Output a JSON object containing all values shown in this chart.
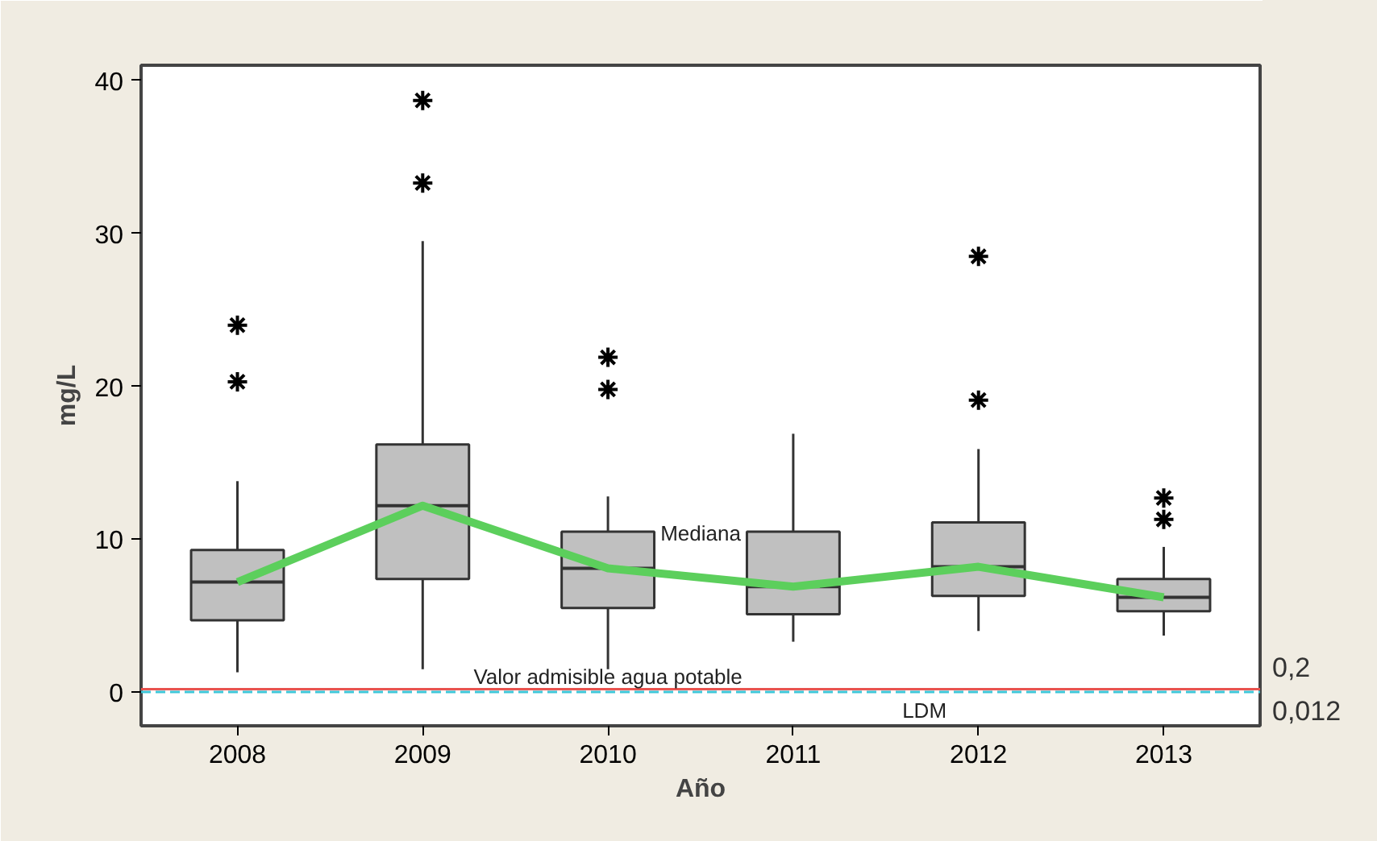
{
  "chart_data": {
    "type": "box",
    "xlabel": "Año",
    "ylabel": "mg/L",
    "categories": [
      "2008",
      "2009",
      "2010",
      "2011",
      "2012",
      "2013"
    ],
    "ylim": [
      -2.2,
      41
    ],
    "yticks": [
      0,
      10,
      20,
      30,
      40
    ],
    "grid": false,
    "legend": false,
    "series": [
      {
        "type": "box",
        "color": "#c0c0c0",
        "boxes": [
          {
            "low": 1.3,
            "q1": 4.7,
            "median": 7.2,
            "q3": 9.3,
            "high": 13.8,
            "outliers": [
              24.0,
              20.3
            ]
          },
          {
            "low": 1.5,
            "q1": 7.4,
            "median": 12.2,
            "q3": 16.2,
            "high": 29.5,
            "outliers": [
              38.7,
              33.3
            ]
          },
          {
            "low": 1.5,
            "q1": 5.5,
            "median": 8.1,
            "q3": 10.5,
            "high": 12.8,
            "outliers": [
              21.9,
              19.8
            ]
          },
          {
            "low": 3.3,
            "q1": 5.1,
            "median": 6.9,
            "q3": 10.5,
            "high": 16.9
          },
          {
            "low": 4.0,
            "q1": 6.3,
            "median": 8.2,
            "q3": 11.1,
            "high": 15.9,
            "outliers": [
              28.5,
              19.1
            ]
          },
          {
            "low": 3.7,
            "q1": 5.3,
            "median": 6.2,
            "q3": 7.4,
            "high": 9.5,
            "outliers": [
              12.7,
              11.3
            ]
          }
        ]
      },
      {
        "type": "line",
        "name": "Mediana",
        "color": "#5ccf5c",
        "values": [
          7.2,
          12.2,
          8.1,
          6.9,
          8.2,
          6.2
        ]
      }
    ],
    "ref_lines": [
      {
        "axis": "y",
        "value": 0.2,
        "label": "0,2",
        "color": "#e8534f",
        "line_style": "solid"
      },
      {
        "axis": "y",
        "value": 0.012,
        "label": "0,012",
        "color": "#3fc6d8",
        "line_style": "dashed"
      }
    ],
    "annotations": [
      {
        "text": "Valor admisible agua potable",
        "x": "2010",
        "y": 1.0
      },
      "LDM"
    ]
  }
}
